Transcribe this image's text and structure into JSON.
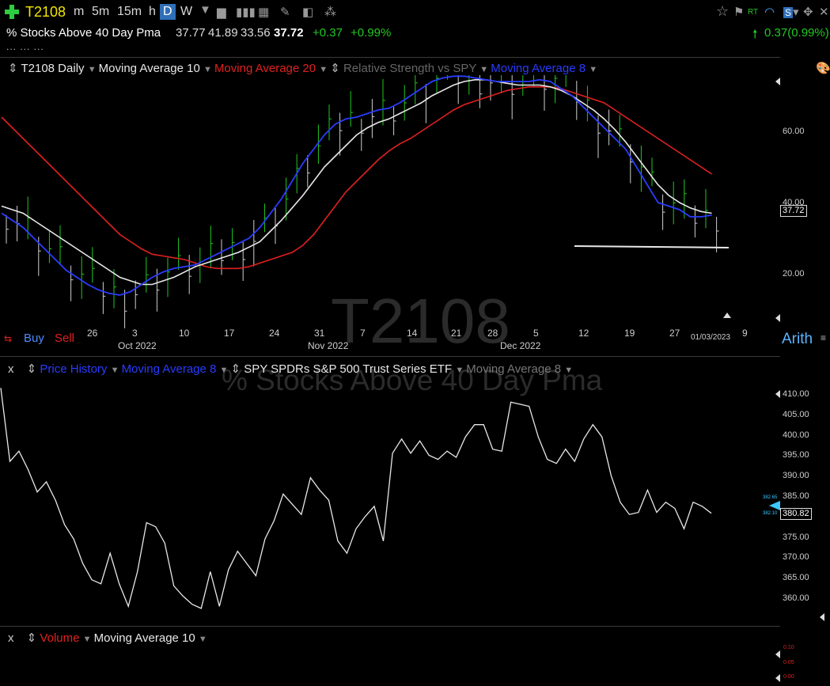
{
  "toolbar": {
    "symbol": "T2108",
    "timeframes": [
      "m",
      "5m",
      "15m",
      "h",
      "D",
      "W"
    ],
    "active_timeframe": "D",
    "right_badge": "RT"
  },
  "quote": {
    "name": "% Stocks Above 40 Day Pma",
    "open": "37.77",
    "high": "41.89",
    "low": "33.56",
    "last": "37.72",
    "change": "+0.37",
    "change_pct": "+0.99%",
    "right_change": "0.37(0.99%)"
  },
  "colors": {
    "green": "#21c821",
    "red": "#e02020",
    "blue": "#2a3cff",
    "white": "#e8e8e8",
    "gray": "#8a8a8a"
  },
  "pane1": {
    "legend": [
      "T2108 Daily",
      "Moving Average 10",
      "Moving Average 20",
      "Relative Strength vs SPY",
      "Moving Average 8"
    ],
    "watermark": "T2108",
    "y_ticks": [
      "60.00",
      "40.00",
      "20.00"
    ],
    "last_value_label": "37.72",
    "x_ticks": [
      "26",
      "3",
      "10",
      "17",
      "24",
      "31",
      "7",
      "14",
      "21",
      "28",
      "5",
      "12",
      "19",
      "27",
      "9"
    ],
    "months": [
      "Oct 2022",
      "Nov 2022",
      "Dec 2022"
    ],
    "date_label": "01/03/2023",
    "buy": "Buy",
    "sell": "Sell",
    "scale_mode": "Arith"
  },
  "pane2": {
    "close_label": "x",
    "legend": [
      "Price History",
      "Moving Average 8",
      "SPY SPDRs S&P 500 Trust Series ETF",
      "Moving Average 8"
    ],
    "watermark": "% Stocks Above 40 Day Pma",
    "y_ticks": [
      "410.00",
      "405.00",
      "400.00",
      "395.00",
      "390.00",
      "385.00",
      "380.00",
      "375.00",
      "370.00",
      "365.00",
      "360.00"
    ],
    "last_value_label": "380.82",
    "small_labels": [
      "382.65",
      "382.10"
    ]
  },
  "pane3": {
    "close_label": "x",
    "legend": [
      "Volume",
      "Moving Average 10"
    ],
    "y_ticks": [
      "0.10",
      "0.05",
      "0.00"
    ]
  },
  "chart_data": [
    {
      "type": "line",
      "title": "T2108 Daily",
      "series": [
        {
          "name": "Moving Average 8",
          "color": "#2a3cff",
          "values": [
            37,
            35,
            33,
            30,
            27,
            24,
            21,
            19,
            17,
            15.5,
            14.5,
            14,
            15,
            17,
            19,
            20.5,
            21.5,
            22,
            22.5,
            24,
            25.5,
            27,
            28.5,
            30,
            33,
            37,
            41,
            46,
            51,
            55,
            59,
            62,
            63.5,
            64,
            65,
            66,
            66.5,
            68,
            70,
            72,
            74,
            75,
            75.5,
            75.5,
            75,
            74.5,
            74,
            74,
            74,
            74,
            74.5,
            74,
            72,
            70,
            67,
            64,
            61,
            58,
            55,
            50,
            45,
            40,
            39,
            38,
            36,
            36,
            36.5
          ]
        },
        {
          "name": "Moving Average 10",
          "color": "#e8e8e8",
          "values": [
            39,
            38,
            37,
            35,
            33,
            31,
            29,
            27,
            25,
            23,
            21,
            19,
            18,
            17,
            17,
            18,
            19,
            20.5,
            22,
            23,
            24,
            25,
            26,
            27.5,
            29,
            32,
            35,
            38.5,
            42,
            46,
            50,
            53,
            56,
            59,
            61,
            62.5,
            63.5,
            65,
            66.5,
            68,
            70,
            71.5,
            73,
            74,
            74.5,
            74.5,
            74,
            73.5,
            73,
            73,
            73,
            72.5,
            71.5,
            70,
            68,
            66,
            63.5,
            60.5,
            57,
            53,
            49,
            45,
            42,
            40,
            38.5,
            37.5,
            37
          ]
        },
        {
          "name": "Moving Average 20",
          "color": "#e02020",
          "values": [
            64,
            61,
            58,
            55,
            52,
            49,
            46,
            43,
            40,
            37,
            34,
            31,
            29,
            27,
            25.5,
            25,
            24.5,
            24,
            23,
            22,
            21.5,
            21.5,
            21.5,
            22,
            23,
            24,
            25,
            26,
            28,
            31,
            35,
            39,
            43,
            46,
            49,
            52,
            54.5,
            56.5,
            58,
            60,
            62,
            64,
            66,
            67.5,
            68.5,
            69.5,
            70.5,
            71.5,
            72,
            72.5,
            72.5,
            72.5,
            72,
            71,
            70,
            69,
            68,
            66,
            64,
            62,
            60,
            58,
            56,
            54,
            52,
            50,
            48
          ]
        }
      ],
      "ylim": [
        10,
        80
      ]
    },
    {
      "type": "line",
      "title": "SPY SPDRs S&P 500 Trust Series ETF",
      "series": [
        {
          "name": "Price History",
          "color": "#e8e8e8",
          "values": [
            411.5,
            393.5,
            396.0,
            391.5,
            386.0,
            388.5,
            384.0,
            378.0,
            374.5,
            368.5,
            364.5,
            363.5,
            371.0,
            363.5,
            358.0,
            366.5,
            378.5,
            377.5,
            373.5,
            363.0,
            360.5,
            358.5,
            357.5,
            366.5,
            358.0,
            367.0,
            371.5,
            368.5,
            365.5,
            374.5,
            379.0,
            385.5,
            383.0,
            380.5,
            389.5,
            386.5,
            384.0,
            374.0,
            371.0,
            377.0,
            380.0,
            382.5,
            374.0,
            395.5,
            399.0,
            395.5,
            398.5,
            395.0,
            394.0,
            396.0,
            394.5,
            399.5,
            402.5,
            402.5,
            396.5,
            396.0,
            408.0,
            407.5,
            407.0,
            399.5,
            394.0,
            393.0,
            396.5,
            393.5,
            399.0,
            402.5,
            399.5,
            390.0,
            383.5,
            380.5,
            381.0,
            386.5,
            381.0,
            383.5,
            382.0,
            377.0,
            383.5,
            382.5,
            380.8
          ]
        }
      ],
      "ylim": [
        355,
        413
      ]
    }
  ]
}
